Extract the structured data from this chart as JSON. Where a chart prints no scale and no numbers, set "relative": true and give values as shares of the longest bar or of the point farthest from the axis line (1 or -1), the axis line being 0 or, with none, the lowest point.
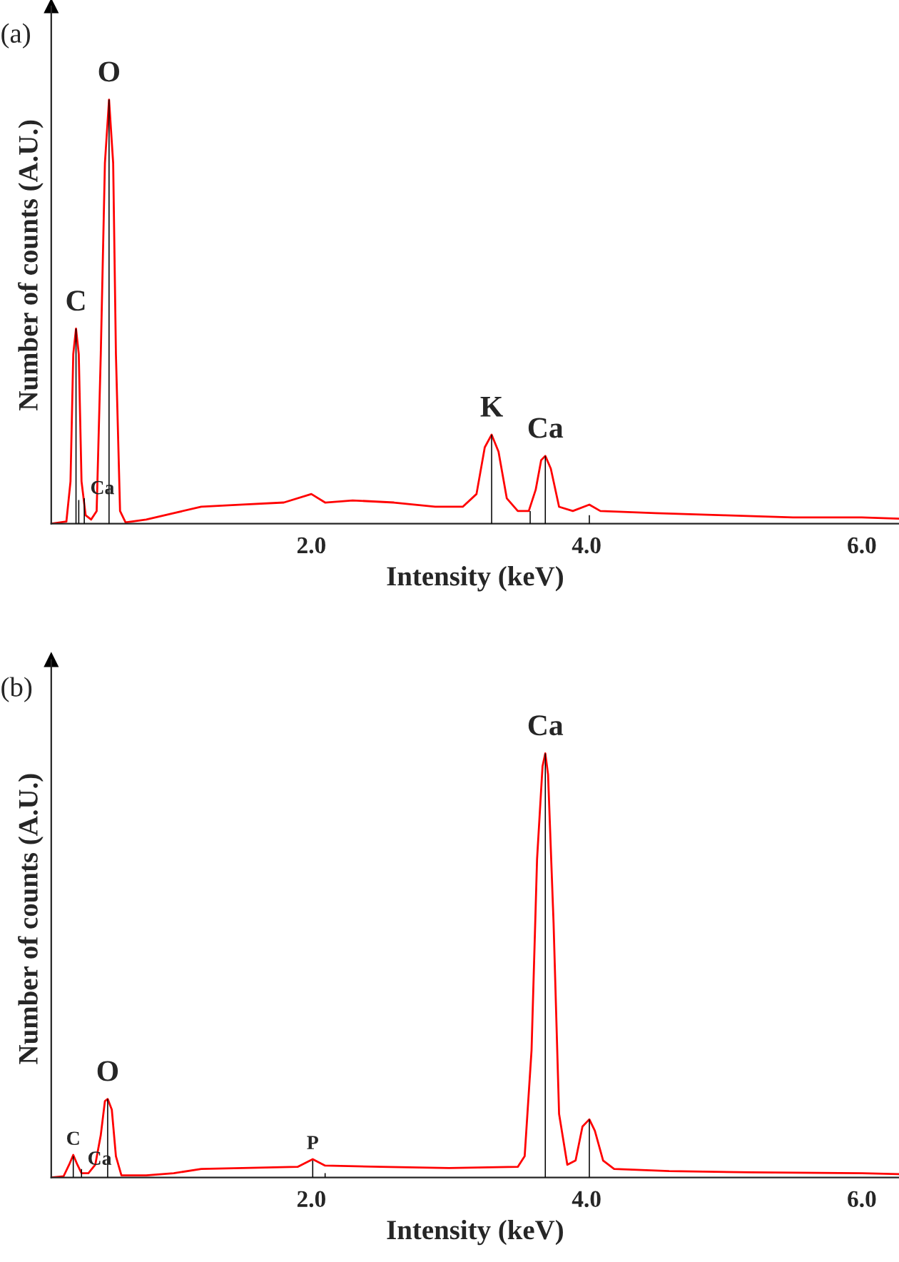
{
  "chart_data": [
    {
      "type": "line",
      "relative": true,
      "xlabel": "Intensity (keV)",
      "ylabel": "Number of counts (A.U.)",
      "xlim": [
        0.11,
        6.27
      ],
      "xticks": [
        {
          "value": 2,
          "label": "2.0"
        },
        {
          "value": 4,
          "label": "4.0"
        },
        {
          "value": 6,
          "label": "6.0"
        }
      ],
      "grid": false,
      "legend": false,
      "series": [
        {
          "type": "line",
          "color": "#ff0000",
          "x": [
            0.11,
            0.22,
            0.25,
            0.27,
            0.29,
            0.31,
            0.33,
            0.36,
            0.4,
            0.44,
            0.47,
            0.5,
            0.53,
            0.56,
            0.58,
            0.61,
            0.65,
            0.8,
            1.0,
            1.2,
            1.5,
            1.8,
            2.0,
            2.1,
            2.3,
            2.6,
            2.9,
            3.1,
            3.2,
            3.26,
            3.31,
            3.36,
            3.42,
            3.5,
            3.58,
            3.63,
            3.67,
            3.7,
            3.74,
            3.8,
            3.9,
            4.02,
            4.1,
            4.5,
            5.0,
            5.5,
            6.0,
            6.27
          ],
          "values": [
            0,
            0.005,
            0.1,
            0.4,
            0.46,
            0.4,
            0.1,
            0.02,
            0.01,
            0.03,
            0.4,
            0.85,
            1.0,
            0.85,
            0.4,
            0.03,
            0.003,
            0.01,
            0.025,
            0.04,
            0.045,
            0.05,
            0.07,
            0.05,
            0.055,
            0.05,
            0.04,
            0.04,
            0.07,
            0.18,
            0.21,
            0.17,
            0.06,
            0.03,
            0.03,
            0.08,
            0.15,
            0.16,
            0.13,
            0.04,
            0.03,
            0.045,
            0.03,
            0.025,
            0.02,
            0.015,
            0.015,
            0.012
          ]
        },
        {
          "type": "bar",
          "color": "#000000",
          "x": [
            0.29,
            0.31,
            0.35,
            0.53,
            3.31,
            3.59,
            3.7,
            4.02
          ],
          "values": [
            0.46,
            0.056,
            0.06,
            1.0,
            0.21,
            0.03,
            0.16,
            0.02
          ]
        }
      ],
      "annotations": [
        "(a)",
        {
          "text": "C",
          "x": 0.29,
          "y": 0.46
        },
        {
          "text": "Ca",
          "x": 0.35,
          "y": 0.06
        },
        {
          "text": "O",
          "x": 0.53,
          "y": 1.0
        },
        {
          "text": "K",
          "x": 3.31,
          "y": 0.21
        },
        {
          "text": "Ca",
          "x": 3.7,
          "y": 0.16
        }
      ]
    },
    {
      "type": "line",
      "relative": true,
      "xlabel": "Intensity (keV)",
      "ylabel": "Number of counts (A.U.)",
      "xlim": [
        0.11,
        6.27
      ],
      "xticks": [
        {
          "value": 2,
          "label": "2.0"
        },
        {
          "value": 4,
          "label": "4.0"
        },
        {
          "value": 6,
          "label": "6.0"
        }
      ],
      "grid": false,
      "legend": false,
      "series": [
        {
          "type": "line",
          "color": "#ff0000",
          "x": [
            0.11,
            0.2,
            0.24,
            0.27,
            0.3,
            0.33,
            0.38,
            0.43,
            0.47,
            0.5,
            0.52,
            0.55,
            0.58,
            0.62,
            0.8,
            1.0,
            1.2,
            1.5,
            1.9,
            2.01,
            2.1,
            2.5,
            3.0,
            3.5,
            3.55,
            3.6,
            3.64,
            3.68,
            3.7,
            3.72,
            3.76,
            3.8,
            3.86,
            3.92,
            3.97,
            4.02,
            4.06,
            4.12,
            4.2,
            4.6,
            5.2,
            6.0,
            6.27
          ],
          "values": [
            0,
            0.003,
            0.03,
            0.053,
            0.03,
            0.01,
            0.01,
            0.03,
            0.1,
            0.18,
            0.185,
            0.16,
            0.05,
            0.005,
            0.005,
            0.01,
            0.02,
            0.022,
            0.025,
            0.043,
            0.028,
            0.025,
            0.022,
            0.025,
            0.05,
            0.3,
            0.75,
            0.97,
            1.0,
            0.95,
            0.6,
            0.15,
            0.03,
            0.04,
            0.12,
            0.137,
            0.11,
            0.04,
            0.02,
            0.015,
            0.012,
            0.01,
            0.008
          ]
        },
        {
          "type": "bar",
          "color": "#000000",
          "x": [
            0.27,
            0.33,
            0.52,
            2.01,
            2.1,
            3.7,
            4.02
          ],
          "values": [
            0.05,
            0.02,
            0.185,
            0.04,
            0.01,
            1.0,
            0.137
          ]
        }
      ],
      "annotations": [
        "(b)",
        {
          "text": "C",
          "x": 0.27,
          "y": 0.053
        },
        {
          "text": "Ca",
          "x": 0.33,
          "y": 0.02
        },
        {
          "text": "O",
          "x": 0.52,
          "y": 0.185
        },
        {
          "text": "P",
          "x": 2.01,
          "y": 0.043
        },
        {
          "text": "Ca",
          "x": 3.7,
          "y": 1.0
        }
      ]
    }
  ]
}
